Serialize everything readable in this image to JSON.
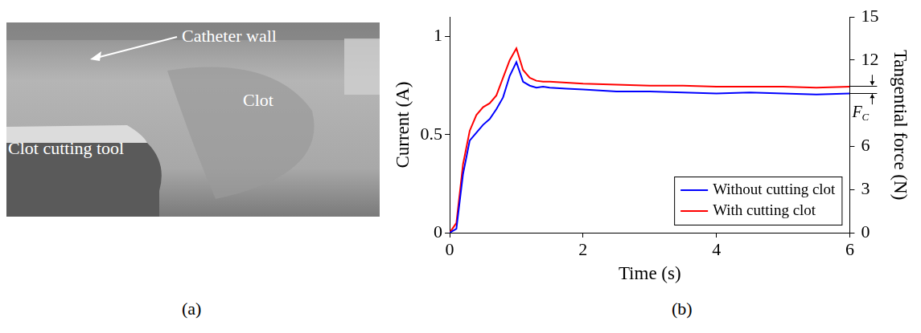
{
  "panel_a": {
    "label": "(a)",
    "annotations": [
      "Catheter wall",
      "Clot",
      "Clot cutting tool"
    ]
  },
  "chart_data": {
    "type": "line",
    "panel_label": "(b)",
    "x_label": "Time (s)",
    "y_label": "Current (A)",
    "y2_label": "Tangential force (N)",
    "x": [
      0,
      0.1,
      0.2,
      0.3,
      0.4,
      0.5,
      0.6,
      0.7,
      0.8,
      0.9,
      1.0,
      1.1,
      1.2,
      1.3,
      1.4,
      1.5,
      1.75,
      2,
      2.5,
      3,
      3.5,
      4,
      4.5,
      5,
      5.5,
      6
    ],
    "series": [
      {
        "name": "Without cutting clot",
        "color": "#0000ff",
        "values": [
          0,
          0.02,
          0.3,
          0.47,
          0.51,
          0.55,
          0.58,
          0.63,
          0.69,
          0.8,
          0.87,
          0.77,
          0.75,
          0.74,
          0.745,
          0.74,
          0.735,
          0.73,
          0.72,
          0.72,
          0.715,
          0.71,
          0.715,
          0.71,
          0.705,
          0.71
        ]
      },
      {
        "name": "With cutting clot",
        "color": "#ff0000",
        "values": [
          0,
          0.05,
          0.35,
          0.52,
          0.6,
          0.64,
          0.66,
          0.7,
          0.79,
          0.88,
          0.94,
          0.83,
          0.79,
          0.775,
          0.77,
          0.77,
          0.765,
          0.76,
          0.755,
          0.75,
          0.75,
          0.745,
          0.745,
          0.745,
          0.74,
          0.745
        ]
      }
    ],
    "xlim": [
      0,
      6
    ],
    "xticks": [
      0,
      2,
      4,
      6
    ],
    "ylim": [
      0,
      1.1
    ],
    "yticks": [
      0,
      0.5,
      1
    ],
    "y2lim": [
      0,
      15
    ],
    "y2ticks": [
      0,
      3,
      6,
      12,
      15
    ],
    "grid": false,
    "legend": "lower right",
    "annotation": {
      "text": "F",
      "subscript": "C",
      "axis": "y2",
      "values": [
        10.2,
        9.7
      ]
    }
  }
}
